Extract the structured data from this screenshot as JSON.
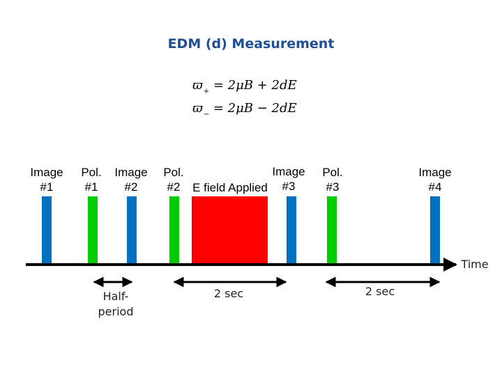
{
  "title": "EDM (d) Measurement",
  "equations": [
    {
      "lhs": "ϖ",
      "sub": "+",
      "rhs": "= 2μB + 2dE"
    },
    {
      "lhs": "ϖ",
      "sub": "−",
      "rhs": "= 2μB − 2dE"
    }
  ],
  "events": [
    {
      "line1": "Image",
      "line2": "#1"
    },
    {
      "line1": "Pol.",
      "line2": "#1"
    },
    {
      "line1": "Image",
      "line2": "#2"
    },
    {
      "line1": "Pol.",
      "line2": "#2"
    },
    {
      "line1": "Image",
      "line2": "#3"
    },
    {
      "line1": "Pol.",
      "line2": "#3"
    },
    {
      "line1": "Image",
      "line2": "#4"
    }
  ],
  "e_field_label": "E field Applied",
  "axis_label": "Time",
  "intervals": [
    {
      "line1": "Half-",
      "line2": "period"
    },
    {
      "line1": "2 sec"
    },
    {
      "line1": "2 sec"
    }
  ],
  "colors": {
    "image": "#0070c0",
    "pol": "#00cc00",
    "efield": "#ff0000",
    "title": "#1f4e96"
  }
}
